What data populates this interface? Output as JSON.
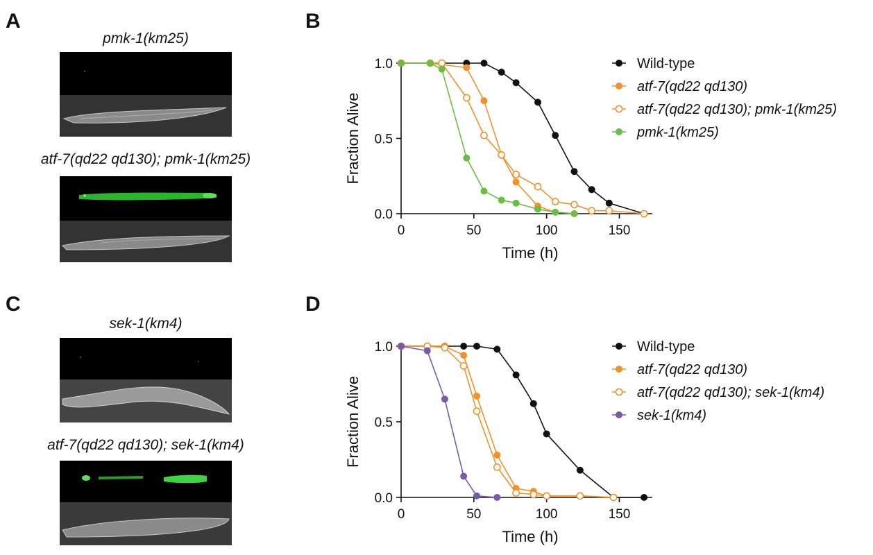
{
  "panels": {
    "A": {
      "letter": "A",
      "captions": [
        "pmk-1(km25)",
        "atf-7(qd22 qd130); pmk-1(km25)"
      ]
    },
    "C": {
      "letter": "C",
      "captions": [
        "sek-1(km4)",
        "atf-7(qd22 qd130); sek-1(km4)"
      ]
    },
    "B": {
      "letter": "B"
    },
    "D": {
      "letter": "D"
    }
  },
  "colors": {
    "wildtype": "#111111",
    "atf7": "#f0922a",
    "pmk1": "#6cbd45",
    "sek1": "#7a5aa6",
    "gfp": "#3ad23a"
  },
  "chart_data": [
    {
      "id": "B",
      "type": "line",
      "xlabel": "Time (h)",
      "ylabel": "Fraction Alive",
      "xlim": [
        0,
        170
      ],
      "ylim": [
        0,
        1
      ],
      "xticks": [
        0,
        50,
        100,
        150
      ],
      "yticks": [
        0.0,
        0.5,
        1.0
      ],
      "ytick_labels": [
        "0.0",
        "0.5",
        "1.0"
      ],
      "legend_position": "right",
      "series": [
        {
          "name": "Wild-type",
          "color_key": "wildtype",
          "marker": "filled",
          "points": [
            [
              0,
              1.0
            ],
            [
              20,
              1.0
            ],
            [
              45,
              1.0
            ],
            [
              57,
              1.0
            ],
            [
              69,
              0.94
            ],
            [
              79,
              0.87
            ],
            [
              94,
              0.74
            ],
            [
              106,
              0.52
            ],
            [
              119,
              0.28
            ],
            [
              131,
              0.16
            ],
            [
              143,
              0.07
            ],
            [
              167,
              0.0
            ]
          ]
        },
        {
          "name": "atf-7(qd22 qd130)",
          "color_key": "atf7",
          "marker": "filled",
          "points": [
            [
              0,
              1.0
            ],
            [
              20,
              1.0
            ],
            [
              45,
              0.97
            ],
            [
              57,
              0.75
            ],
            [
              69,
              0.39
            ],
            [
              79,
              0.21
            ],
            [
              94,
              0.05
            ],
            [
              106,
              0.01
            ],
            [
              119,
              0.0
            ]
          ]
        },
        {
          "name": "atf-7(qd22 qd130); pmk-1(km25)",
          "color_key": "atf7",
          "marker": "open",
          "points": [
            [
              0,
              1.0
            ],
            [
              20,
              1.0
            ],
            [
              28,
              1.0
            ],
            [
              45,
              0.77
            ],
            [
              57,
              0.52
            ],
            [
              69,
              0.39
            ],
            [
              79,
              0.26
            ],
            [
              94,
              0.18
            ],
            [
              106,
              0.08
            ],
            [
              119,
              0.06
            ],
            [
              131,
              0.02
            ],
            [
              143,
              0.02
            ],
            [
              167,
              0.0
            ]
          ]
        },
        {
          "name": "pmk-1(km25)",
          "color_key": "pmk1",
          "marker": "filled",
          "points": [
            [
              0,
              1.0
            ],
            [
              20,
              1.0
            ],
            [
              28,
              0.96
            ],
            [
              45,
              0.37
            ],
            [
              57,
              0.15
            ],
            [
              69,
              0.09
            ],
            [
              79,
              0.07
            ],
            [
              94,
              0.03
            ],
            [
              106,
              0.01
            ],
            [
              119,
              0.0
            ]
          ]
        }
      ]
    },
    {
      "id": "D",
      "type": "line",
      "xlabel": "Time (h)",
      "ylabel": "Fraction Alive",
      "xlim": [
        0,
        170
      ],
      "ylim": [
        0,
        1
      ],
      "xticks": [
        0,
        50,
        100,
        150
      ],
      "yticks": [
        0.0,
        0.5,
        1.0
      ],
      "ytick_labels": [
        "0.0",
        "0.5",
        "1.0"
      ],
      "legend_position": "right",
      "series": [
        {
          "name": "Wild-type",
          "color_key": "wildtype",
          "marker": "filled",
          "points": [
            [
              0,
              1.0
            ],
            [
              18,
              1.0
            ],
            [
              30,
              1.0
            ],
            [
              43,
              1.0
            ],
            [
              52,
              1.0
            ],
            [
              66,
              0.98
            ],
            [
              79,
              0.81
            ],
            [
              91,
              0.62
            ],
            [
              100,
              0.42
            ],
            [
              123,
              0.18
            ],
            [
              146,
              0.0
            ],
            [
              167,
              0.0
            ]
          ]
        },
        {
          "name": "atf-7(qd22 qd130)",
          "color_key": "atf7",
          "marker": "filled",
          "points": [
            [
              0,
              1.0
            ],
            [
              18,
              1.0
            ],
            [
              30,
              1.0
            ],
            [
              43,
              0.94
            ],
            [
              52,
              0.67
            ],
            [
              66,
              0.28
            ],
            [
              79,
              0.06
            ],
            [
              91,
              0.04
            ],
            [
              100,
              0.01
            ],
            [
              123,
              0.01
            ],
            [
              146,
              0.0
            ]
          ]
        },
        {
          "name": "atf-7(qd22 qd130); sek-1(km4)",
          "color_key": "atf7",
          "marker": "open",
          "points": [
            [
              0,
              1.0
            ],
            [
              18,
              1.0
            ],
            [
              30,
              0.99
            ],
            [
              43,
              0.87
            ],
            [
              52,
              0.57
            ],
            [
              66,
              0.2
            ],
            [
              79,
              0.03
            ],
            [
              91,
              0.02
            ],
            [
              100,
              0.01
            ],
            [
              123,
              0.01
            ],
            [
              146,
              0.0
            ]
          ]
        },
        {
          "name": "sek-1(km4)",
          "color_key": "sek1",
          "marker": "filled",
          "points": [
            [
              0,
              1.0
            ],
            [
              18,
              0.97
            ],
            [
              30,
              0.65
            ],
            [
              43,
              0.14
            ],
            [
              52,
              0.01
            ],
            [
              66,
              0.0
            ]
          ]
        }
      ]
    }
  ]
}
